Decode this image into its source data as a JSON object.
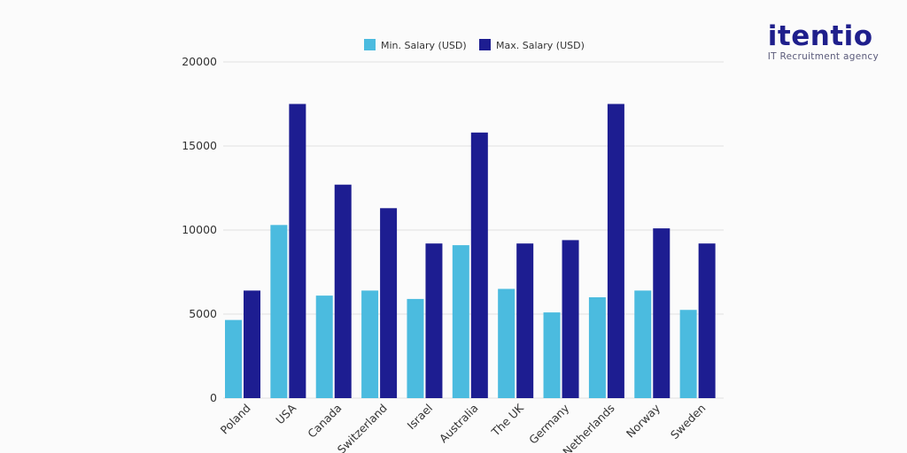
{
  "brand": {
    "name": "itentio",
    "tagline": "IT Recruitment agency",
    "color_name": "#1f1f8c",
    "color_tagline": "#5a5a7a"
  },
  "colors": {
    "min": "#4bbbdf",
    "max": "#1d1d91",
    "grid": "#e0e0e0"
  },
  "chart_data": {
    "type": "bar",
    "categories": [
      "Poland",
      "USA",
      "Canada",
      "Switzerland",
      "Israel",
      "Australia",
      "The UK",
      "Germany",
      "Netherlands",
      "Norway",
      "Sweden"
    ],
    "series": [
      {
        "name": "Min. Salary (USD)",
        "values": [
          4650,
          10300,
          6100,
          6400,
          5900,
          9100,
          6500,
          5100,
          6000,
          6400,
          5250
        ]
      },
      {
        "name": "Max. Salary (USD)",
        "values": [
          6400,
          17500,
          12700,
          11300,
          9200,
          15800,
          9200,
          9400,
          17500,
          10100,
          9200
        ]
      }
    ],
    "yticks": [
      0,
      5000,
      10000,
      15000,
      20000
    ],
    "ylim": [
      0,
      20000
    ],
    "grid": true,
    "legend": "top"
  }
}
